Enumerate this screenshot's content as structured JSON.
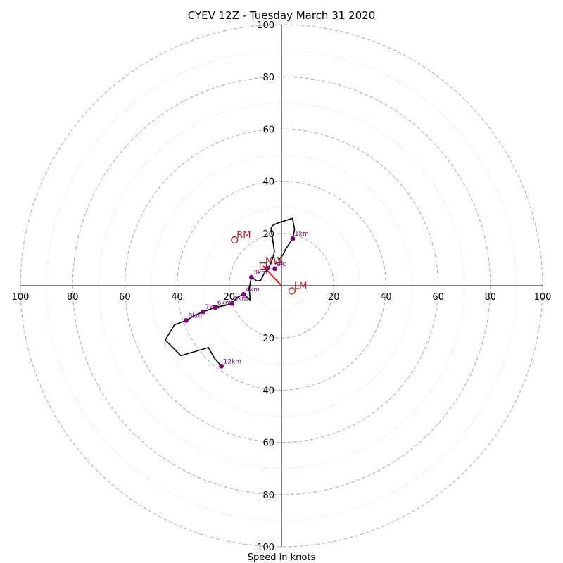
{
  "chart_data": {
    "type": "hodograph",
    "title": "CYEV 12Z - Tuesday March 31 2020",
    "xlabel": "Speed in knots",
    "xlim": [
      -100,
      100
    ],
    "ylim": [
      -100,
      100
    ],
    "ring_labels": [
      100,
      80,
      60,
      40,
      20
    ],
    "axis_ticks": [
      20,
      40,
      60,
      80,
      100
    ],
    "rings_dashed": [
      20,
      40,
      60,
      80,
      100
    ],
    "rings_dotted": [
      10,
      30,
      50,
      70,
      90
    ],
    "wind_profile": [
      [
        -0.5,
        7.8
      ],
      [
        -1.0,
        10.0
      ],
      [
        0.7,
        12.0
      ],
      [
        1.6,
        14.0
      ],
      [
        4.3,
        18.0
      ],
      [
        5.0,
        21.5
      ],
      [
        4.2,
        25.8
      ],
      [
        -1.5,
        24.0
      ],
      [
        -3.5,
        23.0
      ],
      [
        -4.0,
        22.0
      ],
      [
        -3.3,
        17.0
      ],
      [
        -2.7,
        13.0
      ],
      [
        -3.2,
        11.0
      ],
      [
        -3.8,
        9.5
      ],
      [
        -4.6,
        7.5
      ],
      [
        -5.5,
        6.0
      ],
      [
        -6.2,
        5.3
      ],
      [
        -6.8,
        4.5
      ],
      [
        -7.2,
        3.5
      ],
      [
        -8.0,
        2.0
      ],
      [
        -9.5,
        1.8
      ],
      [
        -11.0,
        3.0
      ],
      [
        -11.5,
        3.2
      ],
      [
        -12.0,
        0.8
      ],
      [
        -12.3,
        -0.5
      ],
      [
        -12.3,
        -1.8
      ],
      [
        -12.0,
        -5.5
      ],
      [
        -12.5,
        -5.0
      ],
      [
        -14.5,
        -3.3
      ],
      [
        -17.0,
        -4.5
      ],
      [
        -19.0,
        -6.8
      ],
      [
        -21.3,
        -7.5
      ],
      [
        -25.4,
        -8.3
      ],
      [
        -30.0,
        -10.0
      ],
      [
        -33.0,
        -11.2
      ],
      [
        -36.5,
        -13.3
      ],
      [
        -41.0,
        -15.0
      ],
      [
        -44.5,
        -20.8
      ],
      [
        -38.5,
        -26.8
      ],
      [
        -28.0,
        -23.7
      ],
      [
        -25.5,
        -28.0
      ],
      [
        -23.0,
        -30.8
      ]
    ],
    "height_markers": [
      {
        "label": "1km",
        "x": 4.3,
        "y": 18.0
      },
      {
        "label": "sfc",
        "x": -2.5,
        "y": 6.5
      },
      {
        "label": "2km",
        "x": -5.5,
        "y": 6.7
      },
      {
        "label": "3km",
        "x": -11.5,
        "y": 3.2
      },
      {
        "label": "4km",
        "x": -14.5,
        "y": -3.3
      },
      {
        "label": "5km",
        "x": -19.0,
        "y": -6.8
      },
      {
        "label": "6km",
        "x": -25.4,
        "y": -8.3
      },
      {
        "label": "7km",
        "x": -30.0,
        "y": -10.0
      },
      {
        "label": "8km",
        "x": -36.5,
        "y": -13.3
      },
      {
        "label": "12km",
        "x": -23.0,
        "y": -30.8
      }
    ],
    "motion_markers": [
      {
        "label": "RM",
        "x": -18.0,
        "y": 17.5,
        "shape": "circle"
      },
      {
        "label": "LM",
        "x": 4.0,
        "y": -2.0,
        "shape": "circle"
      },
      {
        "label": "MW",
        "x": -7.0,
        "y": 7.5,
        "shape": "square"
      }
    ],
    "storm_motion_line": {
      "from": [
        0,
        0
      ],
      "to": [
        -7.0,
        7.5
      ]
    },
    "colors": {
      "profile": "#000000",
      "markers": "#800080",
      "motion": "#b22222",
      "storm_line": "#ff0000",
      "rings": "#b0b0b0"
    }
  }
}
